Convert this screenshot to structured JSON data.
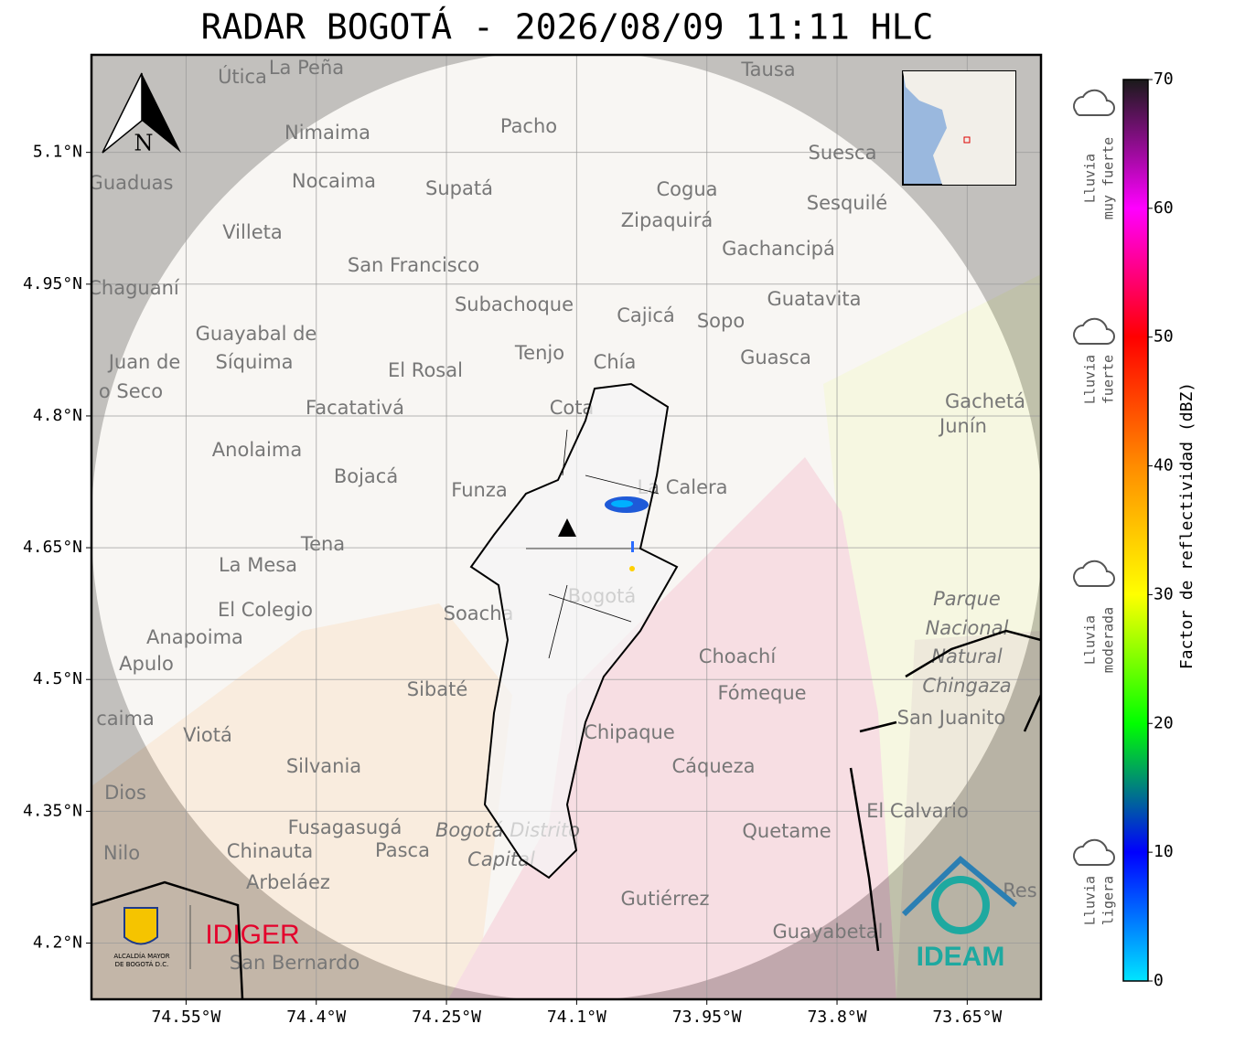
{
  "title": "RADAR BOGOTÁ - 2026/08/09 11:11 HLC",
  "map": {
    "xlim": [
      -74.659,
      -73.565
    ],
    "ylim": [
      4.136,
      5.211
    ],
    "xticks": [
      {
        "value": -74.55,
        "label": "74.55°W"
      },
      {
        "value": -74.4,
        "label": "74.4°W"
      },
      {
        "value": -74.25,
        "label": "74.25°W"
      },
      {
        "value": -74.1,
        "label": "74.1°W"
      },
      {
        "value": -73.95,
        "label": "73.95°W"
      },
      {
        "value": -73.8,
        "label": "73.8°W"
      },
      {
        "value": -73.65,
        "label": "73.65°W"
      }
    ],
    "yticks": [
      {
        "value": 4.2,
        "label": "4.2°N"
      },
      {
        "value": 4.35,
        "label": "4.35°N"
      },
      {
        "value": 4.5,
        "label": "4.5°N"
      },
      {
        "value": 4.65,
        "label": "4.65°N"
      },
      {
        "value": 4.8,
        "label": "4.8°N"
      },
      {
        "value": 4.95,
        "label": "4.95°N"
      },
      {
        "value": 5.1,
        "label": "5.1°N"
      }
    ],
    "grid": true,
    "north": "N",
    "places": [
      "Útica",
      "La Peña",
      "Tausa",
      "Pacho",
      "Nimaima",
      "Guaduas",
      "Nocaima",
      "Supatá",
      "Cogua",
      "Suesca",
      "Sesquilé",
      "Zipaquirá",
      "Villeta",
      "Gachancipá",
      "San Francisco",
      "Chaguaní",
      "Guatavita",
      "Subachoque",
      "Cajicá",
      "Sopo",
      "Guayabal de",
      "Síquima",
      "Juan de",
      "o Seco",
      "Tenjo",
      "Chía",
      "Guasca",
      "El Rosal",
      "Facatativá",
      "Cota",
      "Gachetá",
      "Junín",
      "Anolaima",
      "Bojacá",
      "Funza",
      "La Calera",
      "Tena",
      "La Mesa",
      "Bogotá",
      "Parque",
      "Nacional",
      "Natural",
      "Chingaza",
      "El Colegio",
      "Soacha",
      "Anapoima",
      "Apulo",
      "Choachí",
      "Sibaté",
      "Fómeque",
      "San Juanito",
      "caima",
      "Viotá",
      "Chipaque",
      "Silvania",
      "Cáqueza",
      "Dios",
      "El Calvario",
      "Fusagasugá",
      "Bogotá Distrito",
      "Capital",
      "Quetame",
      "Nilo",
      "Chinauta",
      "Pasca",
      "Arbeláez",
      "Gutiérrez",
      "Res",
      "Guayabetal",
      "San Bernardo"
    ],
    "logos": {
      "alcaldia_line1": "ALCALDÍA MAYOR",
      "alcaldia_line2": "DE BOGOTÁ D.C.",
      "idiger": "IDIGER",
      "ideam": "IDEAM"
    }
  },
  "colorbar": {
    "label": "Factor de reflectividad (dBZ)",
    "range": [
      0,
      70
    ],
    "ticks": [
      0,
      10,
      20,
      30,
      40,
      50,
      60,
      70
    ],
    "colors": [
      "#00e5ff",
      "#0000ff",
      "#00ff00",
      "#ffff00",
      "#ff8c00",
      "#ff0000",
      "#ff00ff",
      "#1a1a1a"
    ],
    "categories": [
      [
        "Lluvia",
        "muy fuerte"
      ],
      [
        "Lluvia",
        "fuerte"
      ],
      [
        "Lluvia",
        "moderada"
      ],
      [
        "Lluvia",
        "ligera"
      ]
    ]
  }
}
